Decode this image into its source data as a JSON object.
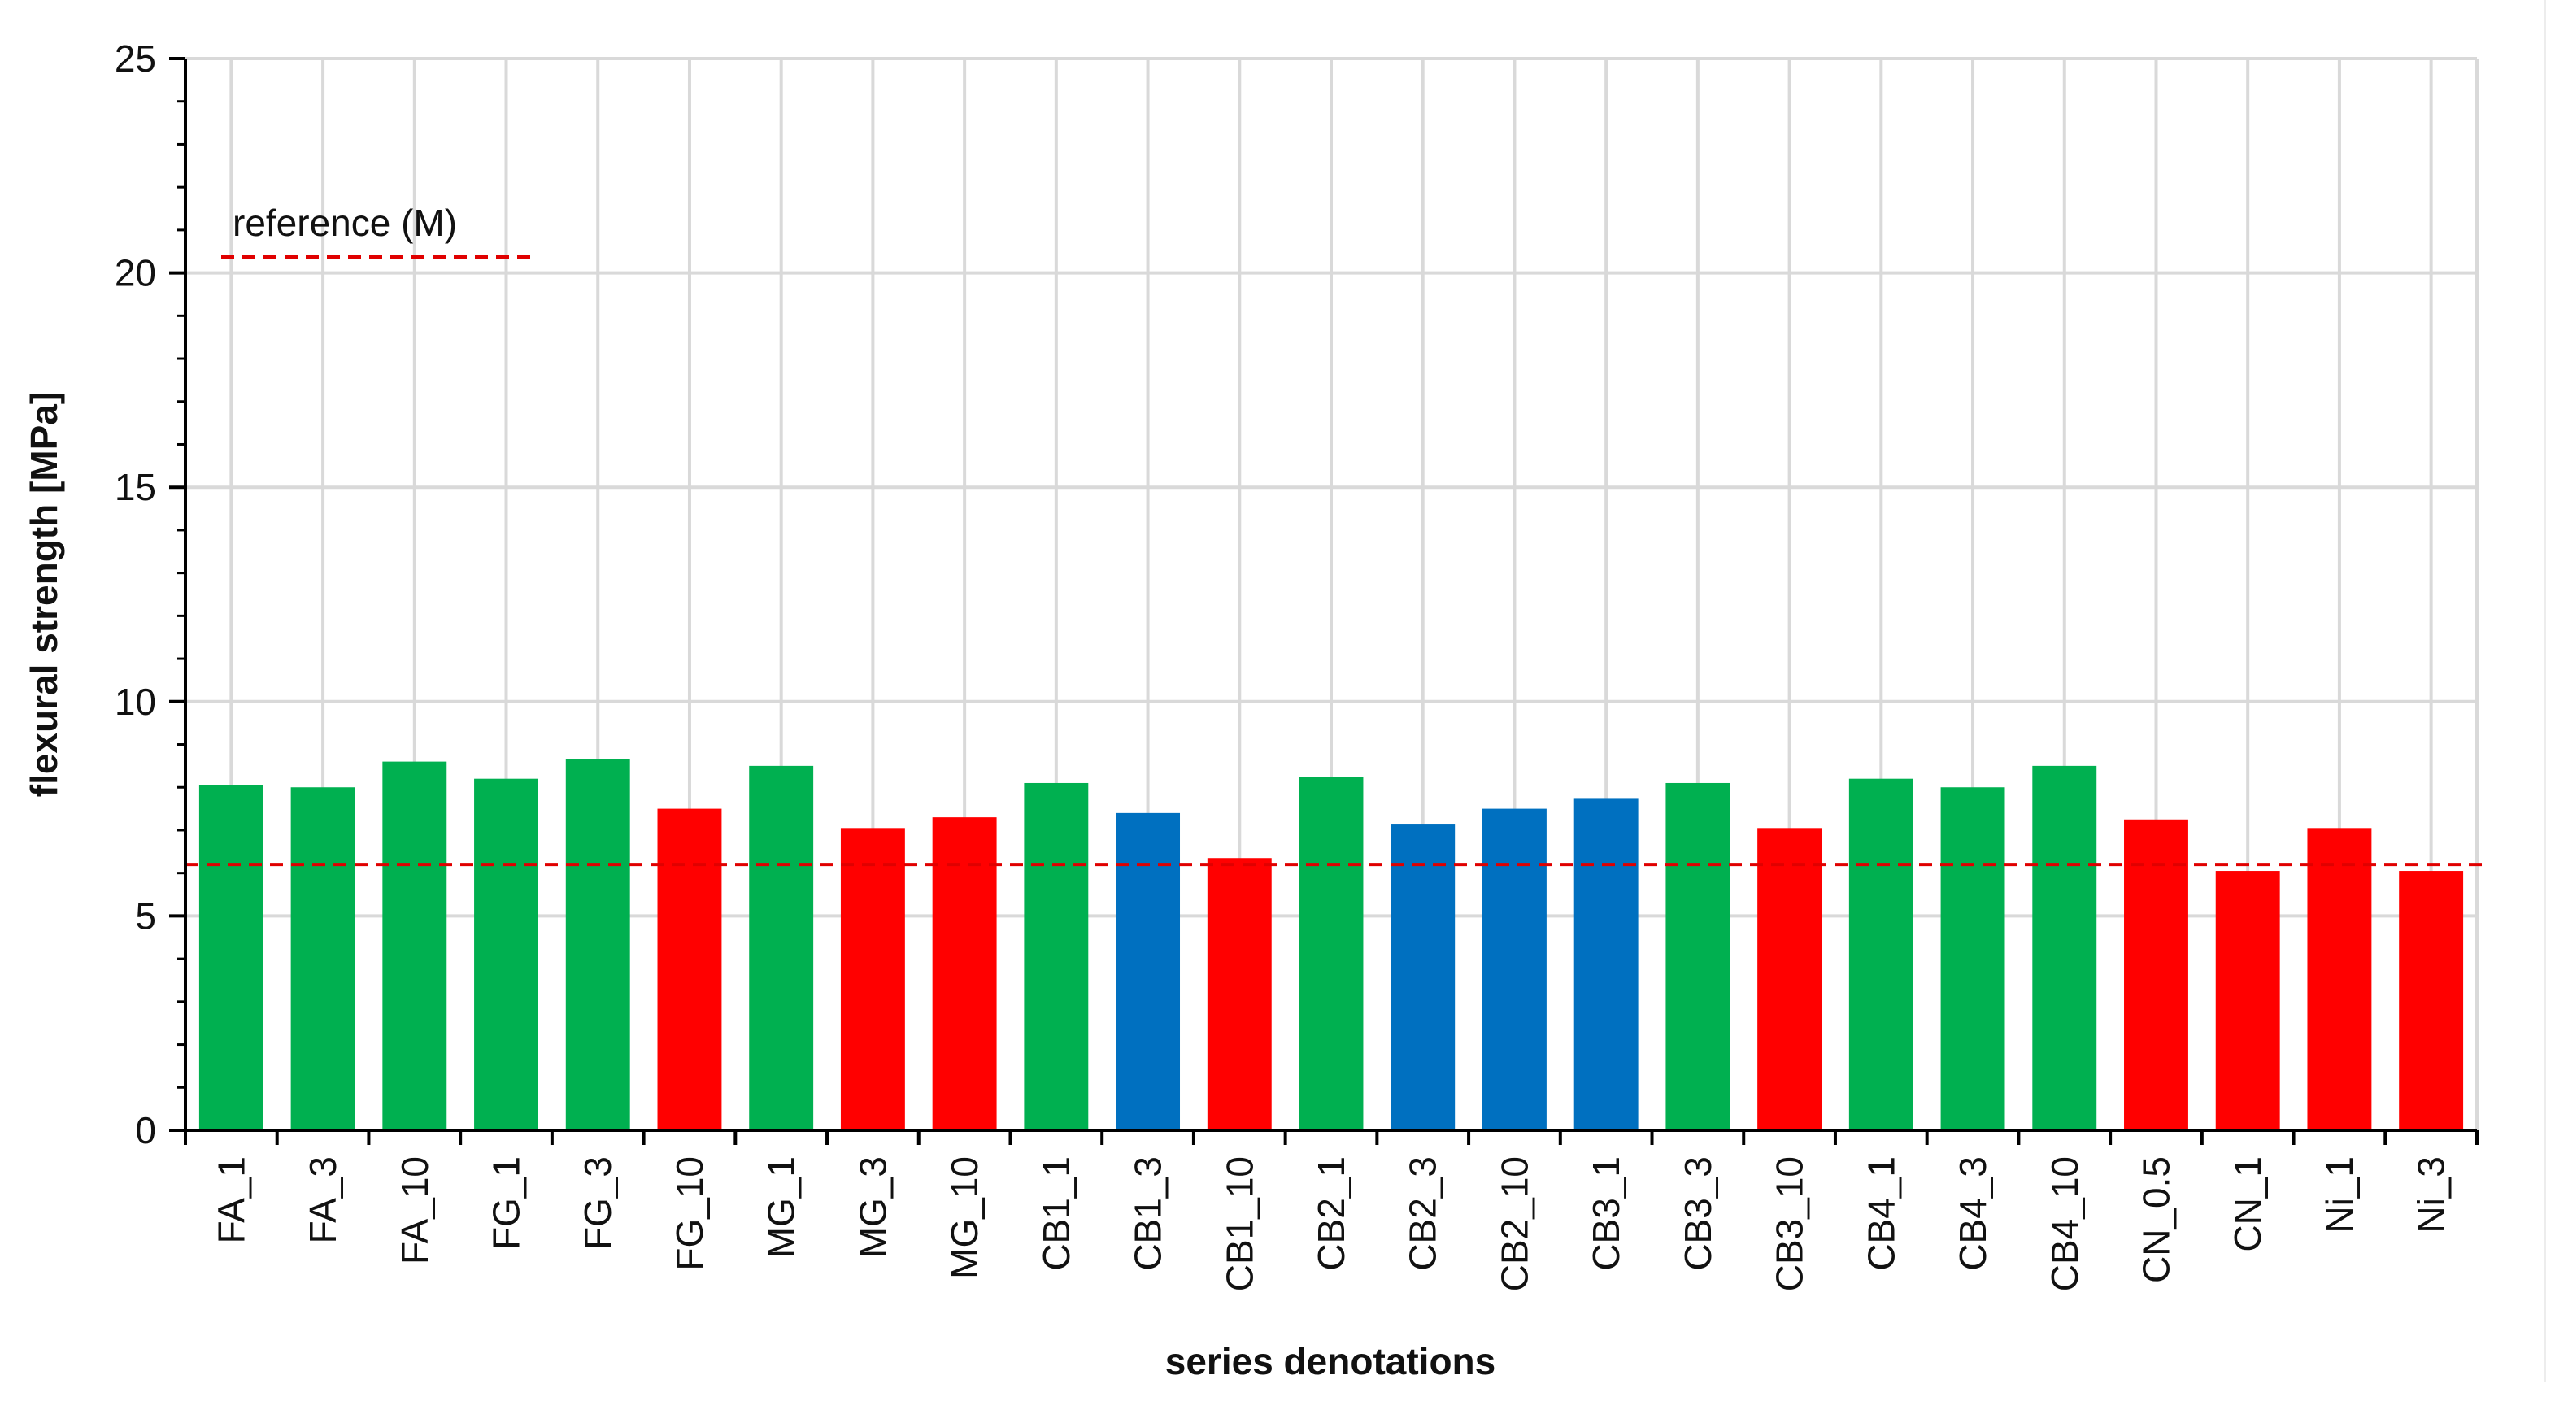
{
  "chart_data": {
    "type": "bar",
    "xlabel": "series denotations",
    "ylabel": "flexural strength [MPa]",
    "ylim": [
      0,
      25
    ],
    "yticks": [
      0,
      5,
      10,
      15,
      20,
      25
    ],
    "grid": true,
    "legend": {
      "text": "reference (M)",
      "placement": "top-left"
    },
    "reference_line": {
      "name": "reference (M)",
      "value": 6.2,
      "color": "#e00000",
      "style": "dashed"
    },
    "categories": [
      "FA_1",
      "FA_3",
      "FA_10",
      "FG_1",
      "FG_3",
      "FG_10",
      "MG_1",
      "MG_3",
      "MG_10",
      "CB1_1",
      "CB1_3",
      "CB1_10",
      "CB2_1",
      "CB2_3",
      "CB2_10",
      "CB3_1",
      "CB3_3",
      "CB3_10",
      "CB4_1",
      "CB4_3",
      "CB4_10",
      "CN_0.5",
      "CN_1",
      "Ni_1",
      "Ni_3"
    ],
    "values": [
      8.05,
      8.0,
      8.6,
      8.2,
      8.65,
      7.5,
      8.5,
      7.05,
      7.3,
      8.1,
      7.4,
      6.35,
      8.25,
      7.15,
      7.5,
      7.75,
      8.1,
      7.05,
      8.2,
      8.0,
      8.5,
      7.25,
      6.05,
      7.05,
      6.05
    ],
    "bar_colors": [
      "#00b050",
      "#00b050",
      "#00b050",
      "#00b050",
      "#00b050",
      "#ff0000",
      "#00b050",
      "#ff0000",
      "#ff0000",
      "#00b050",
      "#0070c0",
      "#ff0000",
      "#00b050",
      "#0070c0",
      "#0070c0",
      "#0070c0",
      "#00b050",
      "#ff0000",
      "#00b050",
      "#00b050",
      "#00b050",
      "#ff0000",
      "#ff0000",
      "#ff0000",
      "#ff0000"
    ]
  },
  "colors": {
    "green": "#00b050",
    "red": "#ff0000",
    "blue": "#0070c0",
    "grid": "#d9d9d9",
    "reference": "#e00000"
  }
}
